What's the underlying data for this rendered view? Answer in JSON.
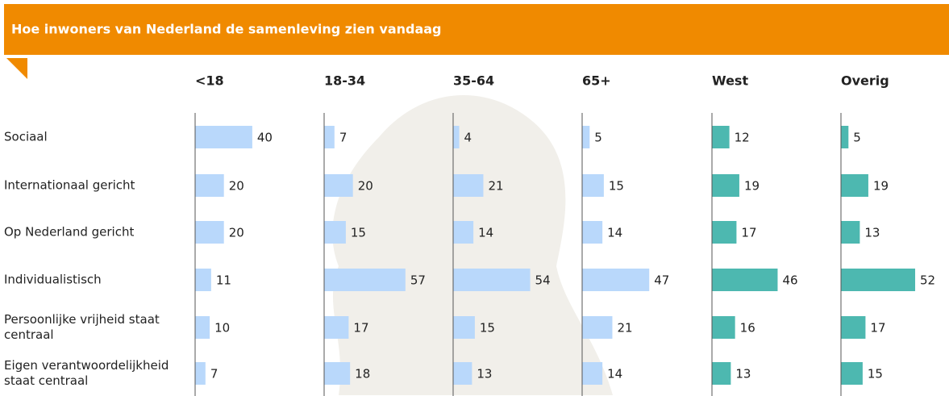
{
  "chart_data": {
    "type": "bar",
    "title": "Hoe inwoners van Nederland de samenleving zien vandaag",
    "categories": [
      "Sociaal",
      "Internationaal gericht",
      "Op Nederland gericht",
      "Individualistisch",
      "Persoonlijke vrijheid staat centraal",
      "Eigen verantwoordelijkheid staat centraal"
    ],
    "series": [
      {
        "name": "<18",
        "color": "#b9d8fb",
        "values": [
          40,
          20,
          20,
          11,
          10,
          7
        ]
      },
      {
        "name": "18-34",
        "color": "#b9d8fb",
        "values": [
          7,
          20,
          15,
          57,
          17,
          18
        ]
      },
      {
        "name": "35-64",
        "color": "#b9d8fb",
        "values": [
          4,
          21,
          14,
          54,
          15,
          13
        ]
      },
      {
        "name": "65+",
        "color": "#b9d8fb",
        "values": [
          5,
          15,
          14,
          47,
          21,
          14
        ]
      },
      {
        "name": "West",
        "color": "#4db8b0",
        "values": [
          12,
          19,
          17,
          46,
          16,
          13
        ]
      },
      {
        "name": "Overig",
        "color": "#4db8b0",
        "values": [
          5,
          19,
          13,
          52,
          17,
          15
        ]
      }
    ]
  }
}
